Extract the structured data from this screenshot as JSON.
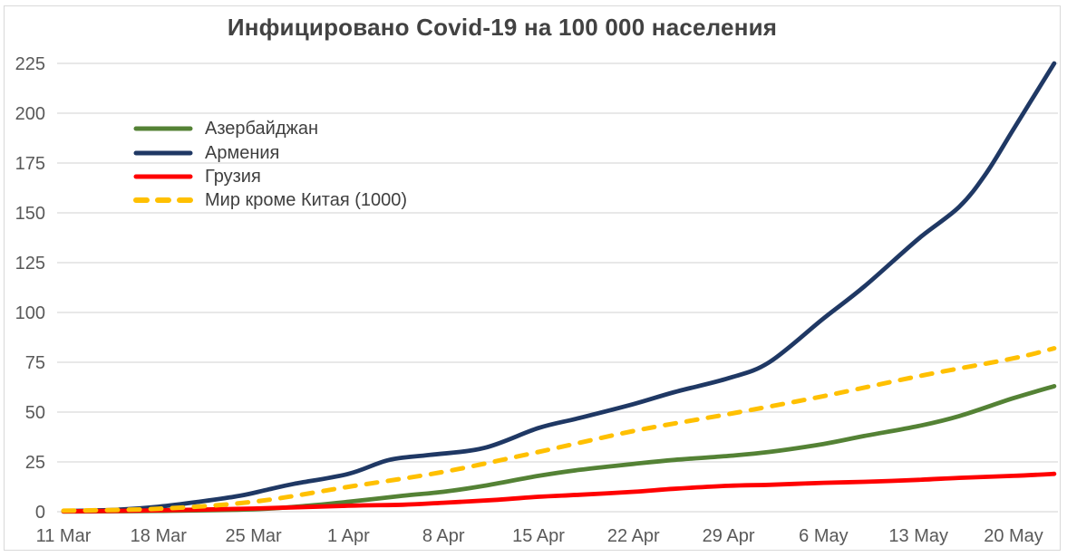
{
  "colors": {
    "background": "#FFFFFF",
    "border": "#D9D9D9",
    "grid": "#D9D9D9",
    "axis_text": "#595959",
    "title_text": "#424242",
    "legend_text": "#3F3F3F"
  },
  "chart_data": {
    "type": "line",
    "title": "Инфицировано Covid-19 на 100 000 населения",
    "grid": "horizontal-only",
    "legend_position": "inside-top-left",
    "x_axis": {
      "unit": "date (day offset from 11 Mar)",
      "tick_labels": [
        "11 Mar",
        "18 Mar",
        "25 Mar",
        "1 Apr",
        "8 Apr",
        "15 Apr",
        "22 Apr",
        "29 Apr",
        "6 May",
        "13 May",
        "20 May"
      ],
      "tick_days": [
        0,
        7,
        14,
        21,
        28,
        35,
        42,
        49,
        56,
        63,
        70
      ],
      "domain_days": [
        0,
        73
      ]
    },
    "y_axis": {
      "ticks": [
        0,
        25,
        50,
        75,
        100,
        125,
        150,
        175,
        200,
        225
      ],
      "range": [
        0,
        225
      ]
    },
    "series": [
      {
        "key": "azerbaijan",
        "name": "Азербайджан",
        "color": "#548235",
        "line_style": "solid",
        "days": [
          0,
          7,
          14,
          18,
          21,
          25,
          28,
          31,
          35,
          38,
          42,
          45,
          49,
          52,
          56,
          59,
          63,
          66,
          70,
          73
        ],
        "values": [
          0.1,
          0.4,
          1.2,
          3,
          5,
          8,
          10,
          13,
          18,
          21,
          24,
          26,
          28,
          30,
          34,
          38,
          43,
          48,
          57,
          63
        ]
      },
      {
        "key": "armenia",
        "name": "Армения",
        "color": "#1F3864",
        "line_style": "solid",
        "days": [
          0,
          4,
          7,
          10,
          13,
          15,
          17,
          21,
          24,
          27,
          31,
          35,
          38,
          42,
          45,
          49,
          52,
          56,
          59,
          63,
          66,
          68,
          70,
          73
        ],
        "values": [
          0.3,
          1,
          2.5,
          5,
          8,
          11,
          14,
          19,
          26,
          28.5,
          32,
          42,
          47,
          54,
          60,
          67,
          75,
          97,
          113,
          137,
          153,
          170,
          192,
          225
        ]
      },
      {
        "key": "georgia",
        "name": "Грузия",
        "color": "#FF0000",
        "line_style": "solid",
        "days": [
          0,
          7,
          14,
          21,
          25,
          28,
          32,
          35,
          38,
          42,
          45,
          49,
          52,
          56,
          59,
          63,
          66,
          70,
          73
        ],
        "values": [
          0.2,
          0.7,
          1.6,
          3,
          3.5,
          4.5,
          6,
          7.5,
          8.5,
          10,
          11.5,
          13,
          13.5,
          14.5,
          15,
          16,
          17,
          18,
          19
        ]
      },
      {
        "key": "world-except-china",
        "name": "Мир кроме Китая (1000)",
        "color": "#FFC000",
        "line_style": "dashed",
        "days": [
          0,
          7,
          14,
          21,
          28,
          35,
          42,
          49,
          56,
          63,
          70,
          73
        ],
        "values": [
          0.5,
          1.5,
          5,
          12.5,
          20,
          30,
          40.5,
          49,
          58,
          68,
          77,
          82
        ]
      }
    ]
  }
}
